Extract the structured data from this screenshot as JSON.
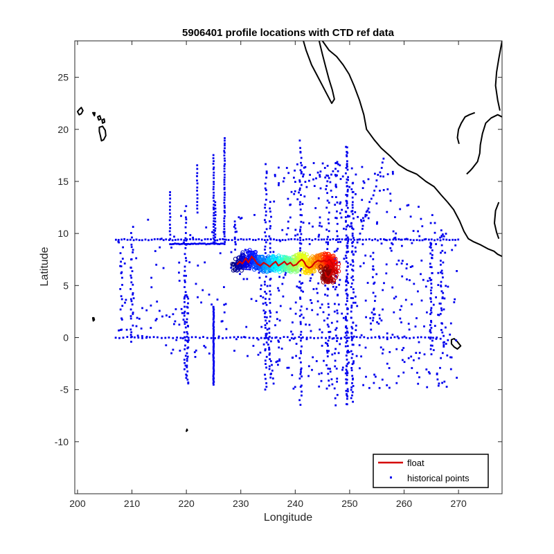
{
  "chart_data": {
    "type": "scatter",
    "title": "5906401 profile locations with CTD ref data",
    "xlabel": "Longitude",
    "ylabel": "Latitude",
    "xlim": [
      199.5,
      278
    ],
    "ylim": [
      -15,
      28.5
    ],
    "xticks": [
      200,
      210,
      220,
      230,
      240,
      250,
      260,
      270
    ],
    "yticks": [
      -10,
      -5,
      0,
      5,
      10,
      15,
      20,
      25
    ],
    "grid": false,
    "legend": {
      "position": "bottom-right",
      "entries": [
        {
          "label": "float",
          "color": "#d40000",
          "marker": "line"
        },
        {
          "label": "historical points",
          "color": "#0000ee",
          "marker": "point"
        }
      ]
    },
    "series": [
      {
        "name": "float",
        "color": "#d40000",
        "x": [
          229.3,
          229.8,
          230.3,
          230.9,
          231.4,
          232.0,
          232.5,
          233.0,
          233.6,
          234.2,
          234.8,
          235.3,
          235.9,
          236.4,
          236.9,
          237.5,
          238.0,
          238.5,
          239.1,
          239.6,
          240.2,
          240.7,
          241.2,
          241.6,
          242.0,
          242.5,
          243.0,
          243.6,
          244.2,
          244.8,
          245.3,
          245.8,
          246.3,
          246.7,
          247.1,
          246.7,
          246.2,
          245.7,
          245.5
        ],
        "y": [
          7.0,
          7.3,
          7.1,
          7.6,
          7.2,
          7.8,
          7.5,
          7.1,
          6.9,
          7.2,
          7.0,
          6.8,
          7.1,
          7.3,
          6.9,
          7.1,
          7.3,
          7.0,
          7.2,
          6.9,
          7.0,
          7.3,
          7.5,
          7.3,
          6.9,
          6.7,
          6.8,
          7.2,
          7.4,
          7.3,
          7.4,
          7.3,
          7.5,
          7.2,
          6.8,
          6.2,
          5.8,
          5.9,
          6.3
        ]
      }
    ],
    "coastline_tracks": [
      [
        [
          241.5,
          28.5
        ],
        [
          242.0,
          27.6
        ],
        [
          243.0,
          26.2
        ],
        [
          244.0,
          25.2
        ],
        [
          245.0,
          24.2
        ],
        [
          246.0,
          23.2
        ],
        [
          246.7,
          22.5
        ],
        [
          247.2,
          22.9
        ],
        [
          246.8,
          23.8
        ],
        [
          246.2,
          24.8
        ],
        [
          245.6,
          26.0
        ],
        [
          245.0,
          27.2
        ],
        [
          244.4,
          28.5
        ]
      ],
      [
        [
          245.0,
          28.5
        ],
        [
          246.2,
          27.6
        ],
        [
          247.6,
          27.0
        ],
        [
          248.8,
          26.2
        ],
        [
          249.9,
          25.3
        ],
        [
          250.8,
          24.2
        ],
        [
          251.8,
          22.8
        ],
        [
          252.6,
          21.4
        ],
        [
          253.1,
          20.0
        ],
        [
          254.5,
          19.0
        ],
        [
          255.8,
          18.2
        ],
        [
          257.5,
          17.4
        ],
        [
          259.0,
          16.6
        ],
        [
          260.5,
          16.1
        ],
        [
          262.3,
          15.7
        ],
        [
          264.0,
          15.0
        ],
        [
          265.5,
          14.5
        ],
        [
          266.8,
          13.7
        ],
        [
          268.0,
          13.0
        ],
        [
          269.1,
          12.3
        ],
        [
          270.2,
          11.2
        ],
        [
          271.0,
          10.2
        ],
        [
          271.8,
          9.5
        ],
        [
          272.8,
          9.2
        ],
        [
          274.1,
          8.9
        ],
        [
          275.5,
          8.5
        ],
        [
          276.5,
          8.3
        ],
        [
          277.2,
          8.0
        ],
        [
          278.0,
          7.8
        ]
      ],
      [
        [
          278.0,
          21.2
        ],
        [
          277.2,
          21.4
        ],
        [
          276.0,
          21.1
        ],
        [
          275.0,
          20.6
        ],
        [
          274.4,
          19.6
        ],
        [
          274.0,
          18.5
        ],
        [
          273.9,
          17.7
        ],
        [
          273.5,
          16.9
        ],
        [
          272.6,
          16.3
        ],
        [
          272.1,
          16.0
        ],
        [
          271.5,
          15.7
        ]
      ],
      [
        [
          273.0,
          21.6
        ],
        [
          272.0,
          21.4
        ],
        [
          271.2,
          21.2
        ],
        [
          270.5,
          20.6
        ],
        [
          270.0,
          20.0
        ],
        [
          269.8,
          19.2
        ],
        [
          270.1,
          18.6
        ]
      ],
      [
        [
          278.0,
          28.5
        ],
        [
          277.4,
          26.8
        ],
        [
          277.0,
          25.5
        ],
        [
          276.8,
          24.2
        ],
        [
          277.2,
          22.8
        ],
        [
          277.6,
          21.8
        ]
      ],
      [
        [
          277.4,
          9.5
        ],
        [
          277.0,
          10.1
        ],
        [
          276.6,
          11.0
        ],
        [
          276.8,
          12.2
        ],
        [
          277.4,
          13.0
        ]
      ]
    ],
    "islands": [
      [
        [
          200.0,
          21.7
        ],
        [
          200.3,
          21.9
        ],
        [
          200.7,
          22.1
        ],
        [
          201.0,
          21.8
        ],
        [
          200.7,
          21.5
        ],
        [
          200.3,
          21.4
        ],
        [
          200.0,
          21.7
        ]
      ],
      [
        [
          202.8,
          21.6
        ],
        [
          203.2,
          21.6
        ],
        [
          203.1,
          21.3
        ],
        [
          202.8,
          21.6
        ]
      ],
      [
        [
          203.7,
          21.2
        ],
        [
          204.1,
          21.3
        ],
        [
          204.3,
          21.0
        ],
        [
          203.9,
          20.9
        ],
        [
          203.7,
          21.2
        ]
      ],
      [
        [
          204.5,
          20.9
        ],
        [
          204.9,
          21.0
        ],
        [
          205.0,
          20.7
        ],
        [
          204.6,
          20.6
        ],
        [
          204.5,
          20.9
        ]
      ],
      [
        [
          204.0,
          20.2
        ],
        [
          204.6,
          20.3
        ],
        [
          205.1,
          19.9
        ],
        [
          205.2,
          19.4
        ],
        [
          204.8,
          19.0
        ],
        [
          204.4,
          18.9
        ],
        [
          204.2,
          19.4
        ],
        [
          204.0,
          19.8
        ],
        [
          204.0,
          20.2
        ]
      ],
      [
        [
          202.8,
          1.9
        ],
        [
          203.0,
          1.9
        ],
        [
          203.1,
          1.7
        ],
        [
          202.9,
          1.6
        ],
        [
          202.8,
          1.9
        ]
      ],
      [
        [
          220.1,
          -8.8
        ],
        [
          220.2,
          -8.9
        ],
        [
          220.0,
          -9.0
        ],
        [
          220.1,
          -8.8
        ]
      ],
      [
        [
          268.7,
          -0.2
        ],
        [
          269.2,
          -0.1
        ],
        [
          269.8,
          -0.4
        ],
        [
          270.4,
          -0.8
        ],
        [
          269.8,
          -1.1
        ],
        [
          269.2,
          -0.9
        ],
        [
          268.7,
          -0.6
        ],
        [
          268.7,
          -0.2
        ]
      ]
    ]
  }
}
